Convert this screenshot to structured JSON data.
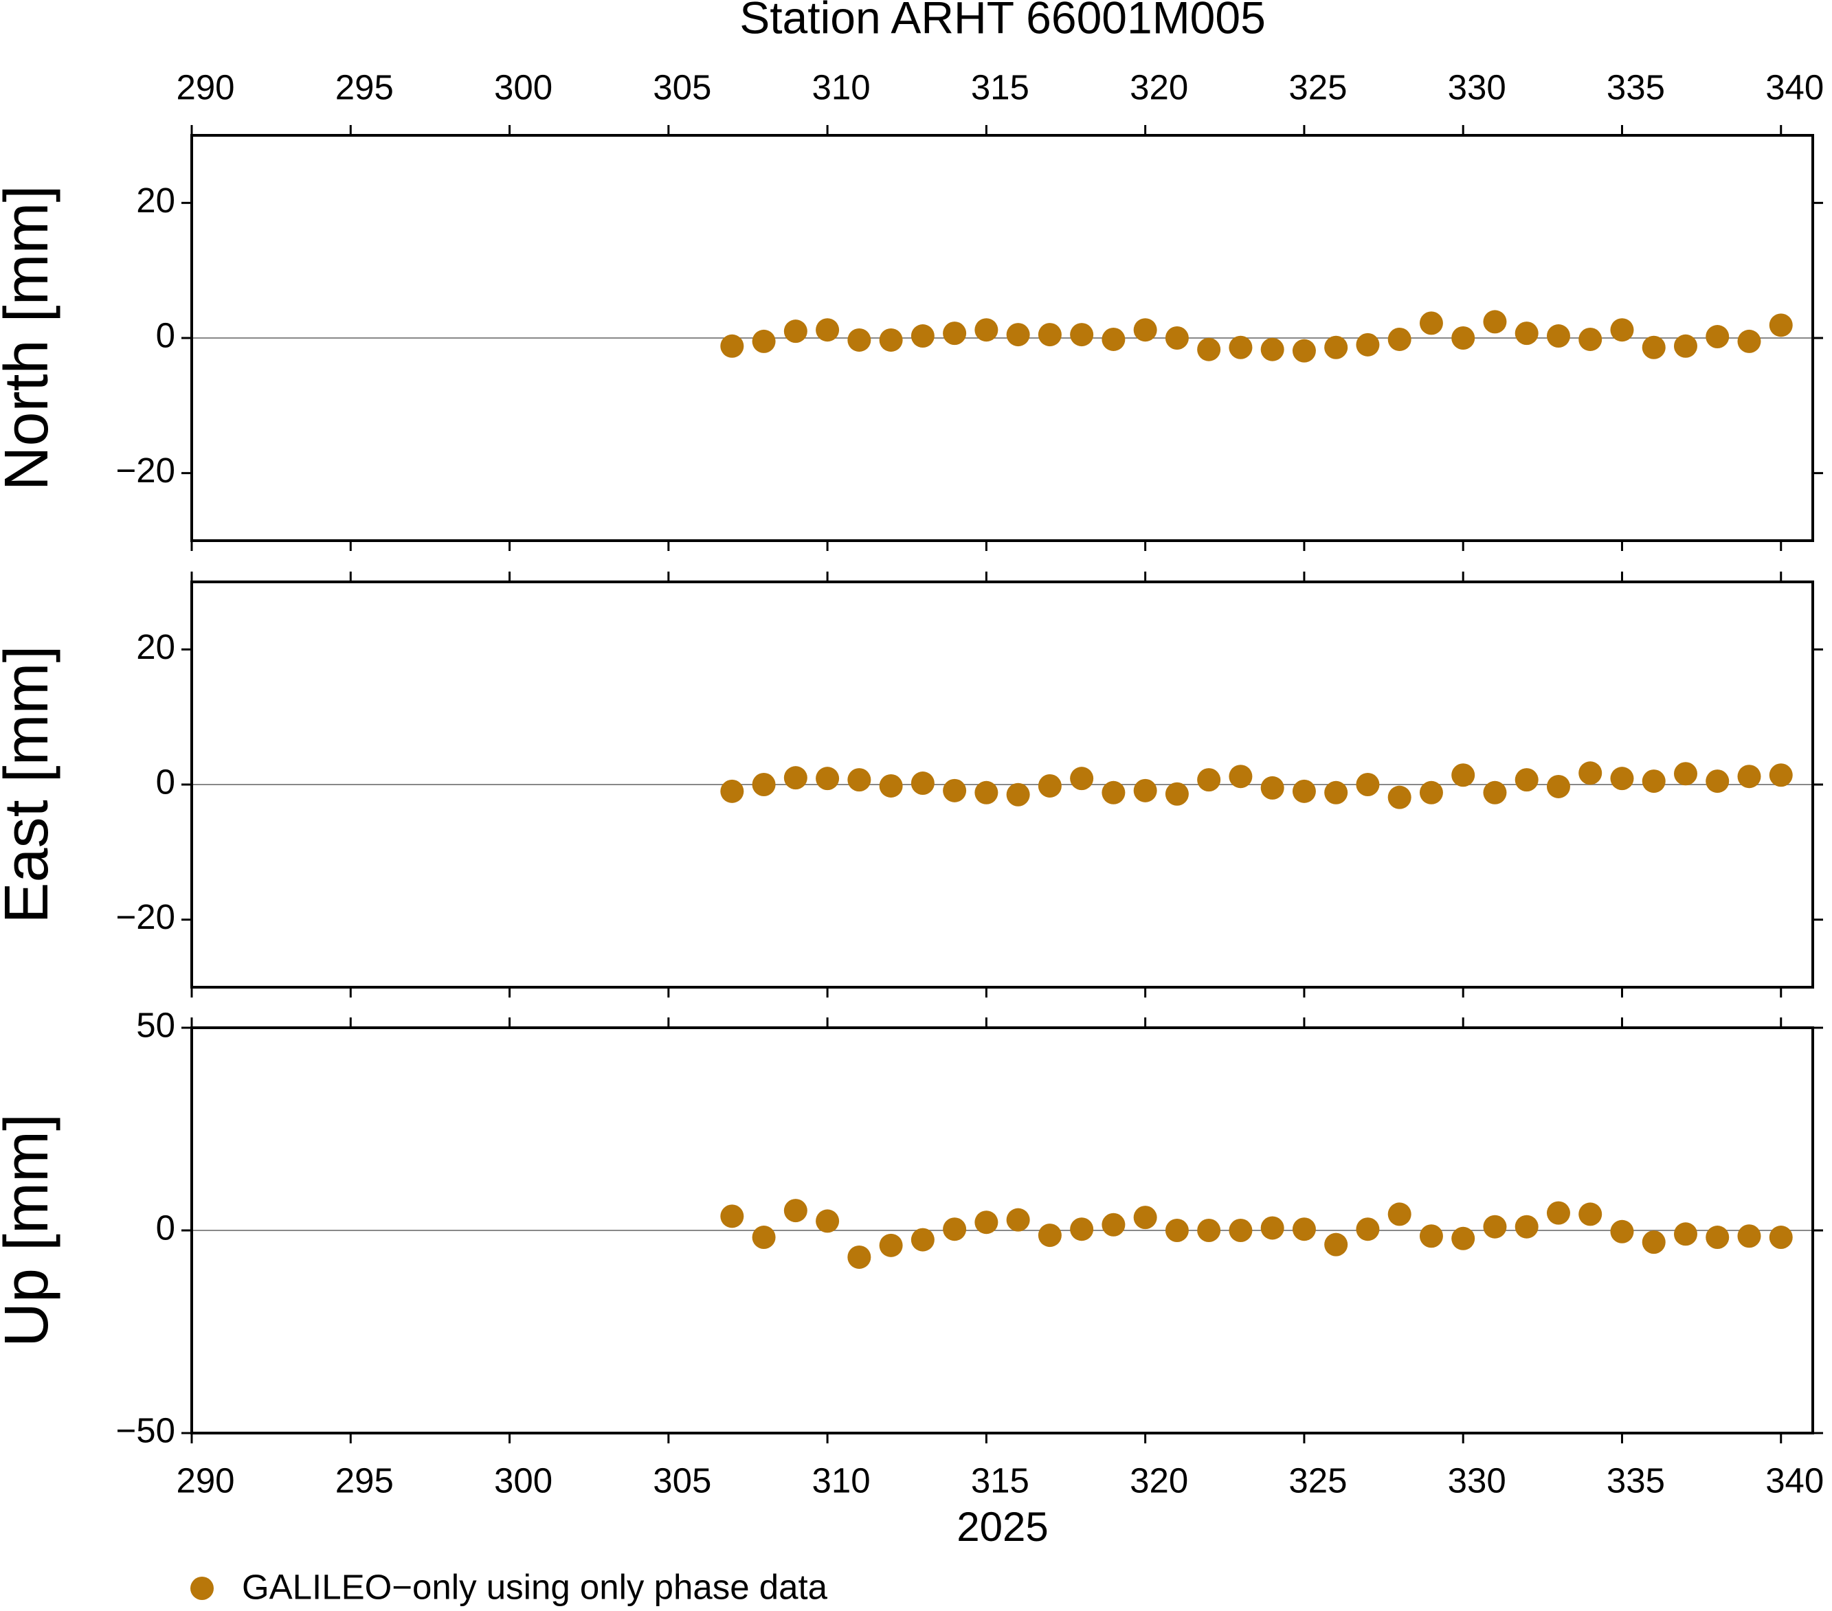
{
  "chart_data": [
    {
      "type": "scatter",
      "title": "Station ARHT 66001M005",
      "ylabel": "North [mm]",
      "x": [
        307,
        308,
        309,
        310,
        311,
        312,
        313,
        314,
        315,
        316,
        317,
        318,
        319,
        320,
        321,
        322,
        323,
        324,
        325,
        326,
        327,
        328,
        329,
        330,
        331,
        332,
        333,
        334,
        335,
        336,
        337,
        338,
        339,
        340
      ],
      "series": [
        {
          "color": "#b8770a",
          "values": [
            -1.2,
            -0.5,
            1,
            1.2,
            -0.3,
            -0.3,
            0.3,
            0.7,
            1.2,
            0.5,
            0.5,
            0.5,
            -0.2,
            1.2,
            0,
            -1.7,
            -1.4,
            -1.7,
            -1.9,
            -1.4,
            -1,
            -0.2,
            2.2,
            0,
            2.4,
            0.7,
            0.3,
            -0.2,
            1.2,
            -1.4,
            -1.2,
            0.2,
            -0.5,
            1.9
          ]
        }
      ],
      "xlim": [
        290,
        341
      ],
      "xticks": [
        290,
        295,
        300,
        305,
        310,
        315,
        320,
        325,
        330,
        335,
        340
      ],
      "ylim": [
        -30,
        30
      ],
      "yticks": [
        20,
        0,
        {
          "value": -20,
          "label": "−20"
        }
      ],
      "zero_line": true
    },
    {
      "type": "scatter",
      "ylabel": "East [mm]",
      "x": [
        307,
        308,
        309,
        310,
        311,
        312,
        313,
        314,
        315,
        316,
        317,
        318,
        319,
        320,
        321,
        322,
        323,
        324,
        325,
        326,
        327,
        328,
        329,
        330,
        331,
        332,
        333,
        334,
        335,
        336,
        337,
        338,
        339,
        340
      ],
      "series": [
        {
          "color": "#b8770a",
          "values": [
            -1,
            0,
            1,
            0.9,
            0.7,
            -0.2,
            0.2,
            -0.9,
            -1.2,
            -1.5,
            -0.2,
            0.9,
            -1.2,
            -0.9,
            -1.4,
            0.7,
            1.2,
            -0.5,
            -1,
            -1.2,
            0,
            -1.9,
            -1.2,
            1.4,
            -1.2,
            0.7,
            -0.3,
            1.7,
            0.9,
            0.5,
            1.6,
            0.5,
            1.2,
            1.4
          ]
        }
      ],
      "xlim": [
        290,
        341
      ],
      "xticks": [
        290,
        295,
        300,
        305,
        310,
        315,
        320,
        325,
        330,
        335,
        340
      ],
      "ylim": [
        -30,
        30
      ],
      "yticks": [
        20,
        0,
        {
          "value": -20,
          "label": "−20"
        }
      ],
      "zero_line": true
    },
    {
      "type": "scatter",
      "ylabel": "Up [mm]",
      "xlabel": "2025",
      "x": [
        307,
        308,
        309,
        310,
        311,
        312,
        313,
        314,
        315,
        316,
        317,
        318,
        319,
        320,
        321,
        322,
        323,
        324,
        325,
        326,
        327,
        328,
        329,
        330,
        331,
        332,
        333,
        334,
        335,
        336,
        337,
        338,
        339,
        340
      ],
      "series": [
        {
          "name": "GALILEO−only using only phase data",
          "color": "#b8770a",
          "values": [
            3.5,
            -1.7,
            4.9,
            2.3,
            -6.6,
            -3.7,
            -2.3,
            0.3,
            2,
            2.6,
            -1.2,
            0.3,
            1.4,
            3.2,
            0,
            0,
            0,
            0.6,
            0.3,
            -3.5,
            0.3,
            4,
            -1.4,
            -2,
            0.9,
            0.9,
            4.3,
            4,
            -0.3,
            -2.9,
            -0.9,
            -1.7,
            -1.4,
            -1.7
          ]
        }
      ],
      "xlim": [
        290,
        341
      ],
      "xticks": [
        290,
        295,
        300,
        305,
        310,
        315,
        320,
        325,
        330,
        335,
        340
      ],
      "ylim": [
        -50,
        50
      ],
      "yticks": [
        50,
        0,
        {
          "value": -50,
          "label": "−50"
        }
      ],
      "zero_line": true
    }
  ]
}
